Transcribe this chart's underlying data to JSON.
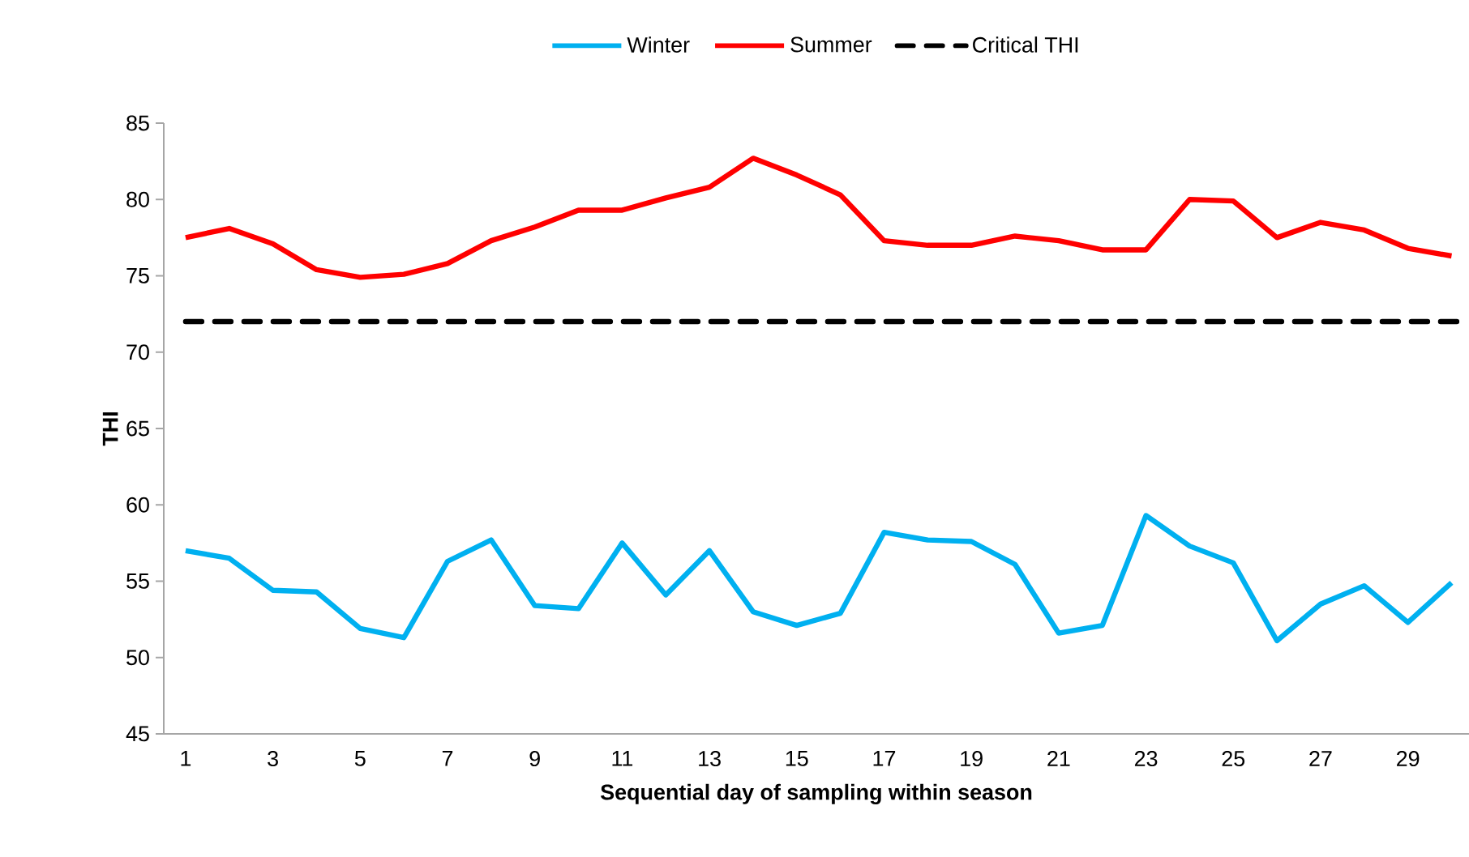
{
  "chart_data": {
    "type": "line",
    "xlabel": "Sequential day of sampling within season",
    "ylabel": "THI",
    "categories": [
      "1",
      null,
      "3",
      null,
      "5",
      null,
      "7",
      null,
      "9",
      null,
      "11",
      null,
      "13",
      null,
      "15",
      null,
      "17",
      null,
      "19",
      null,
      "21",
      null,
      "23",
      null,
      "25",
      null,
      "27",
      null,
      "29",
      null
    ],
    "series": [
      {
        "name": "Winter",
        "color": "#00b0f0",
        "values": [
          57.0,
          56.5,
          54.4,
          54.3,
          51.9,
          51.3,
          56.3,
          57.7,
          53.4,
          53.2,
          57.5,
          54.1,
          57.0,
          53.0,
          52.1,
          52.9,
          58.2,
          57.7,
          57.6,
          56.1,
          51.6,
          52.1,
          59.3,
          57.3,
          56.2,
          51.1,
          53.5,
          54.7,
          52.3,
          54.9
        ]
      },
      {
        "name": "Summer",
        "color": "#ff0000",
        "values": [
          77.5,
          78.1,
          77.1,
          75.4,
          74.9,
          75.1,
          75.8,
          77.3,
          78.2,
          79.3,
          79.3,
          80.1,
          80.8,
          82.7,
          81.6,
          80.3,
          77.3,
          77.0,
          77.0,
          77.6,
          77.3,
          76.7,
          76.7,
          80.0,
          79.9,
          77.5,
          78.5,
          78.0,
          76.8,
          76.3
        ]
      }
    ],
    "ref_lines": [
      {
        "axis": "y",
        "value": 72,
        "label": "Critical THI",
        "color": "#000000",
        "line_style": "dashed"
      }
    ],
    "ylim": [
      45,
      85
    ],
    "yticks": [
      45,
      50,
      55,
      60,
      65,
      70,
      75,
      80,
      85
    ],
    "grid": false,
    "legend": "top"
  }
}
